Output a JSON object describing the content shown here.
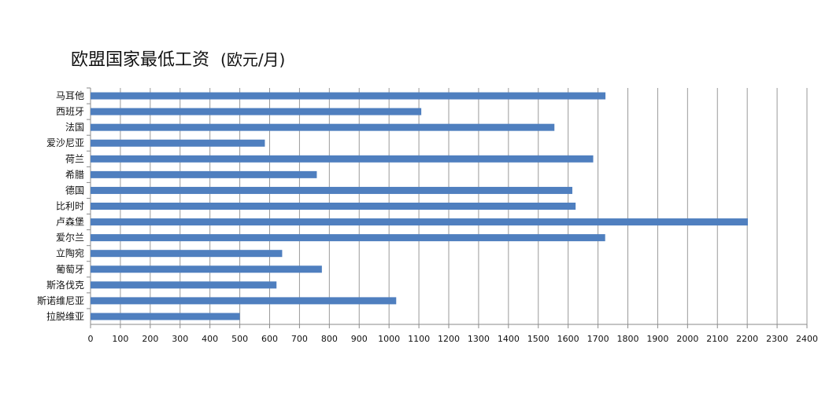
{
  "chart_data": {
    "type": "bar",
    "orientation": "horizontal",
    "title": "欧盟国家最低工资",
    "unit": "(欧元/月)",
    "categories": [
      "马耳他",
      "西班牙",
      "法国",
      "爱沙尼亚",
      "荷兰",
      "希腊",
      "德国",
      "比利时",
      "卢森堡",
      "爱尔兰",
      "立陶宛",
      "葡萄牙",
      "斯洛伐克",
      "斯诺维尼亚",
      "拉脱维亚"
    ],
    "values": [
      1725,
      1108,
      1554,
      584,
      1684,
      758,
      1614,
      1625,
      2202,
      1724,
      642,
      775,
      623,
      1024,
      500
    ],
    "xlim": [
      0,
      2400
    ],
    "xticks": [
      0,
      100,
      200,
      300,
      400,
      500,
      600,
      700,
      800,
      900,
      1000,
      1100,
      1200,
      1300,
      1400,
      1500,
      1600,
      1700,
      1800,
      1900,
      2000,
      2100,
      2200,
      2300,
      2400
    ],
    "grid": "vertical",
    "bar_color": "#4f7fbf",
    "grid_color": "#9a9a9a"
  }
}
